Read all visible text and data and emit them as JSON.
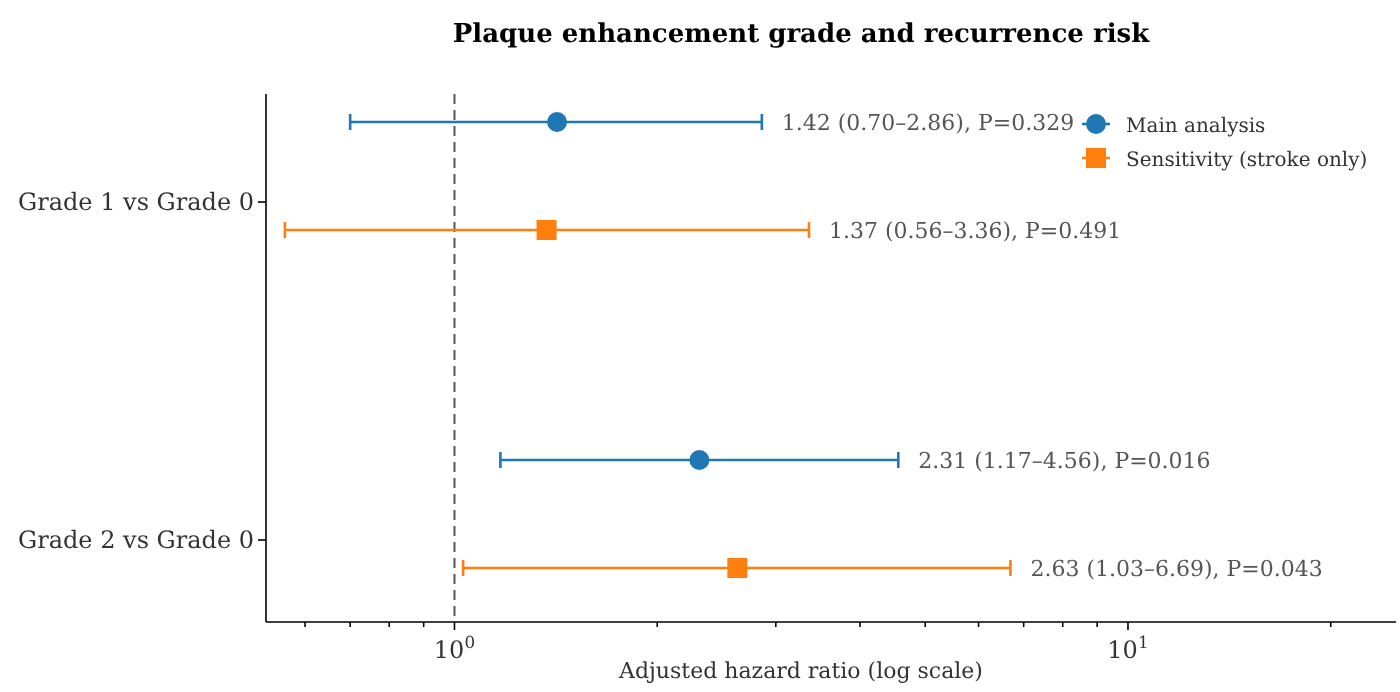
{
  "chart_data": {
    "type": "scatter",
    "orientation": "horizontal",
    "title": "Plaque enhancement grade and recurrence risk",
    "xlabel": "Adjusted hazard ratio (log scale)",
    "categories": [
      "Grade 1 vs Grade 0",
      "Grade 2 vs Grade 0"
    ],
    "log": "x",
    "xlim": [
      0.525,
      25
    ],
    "xticks": [
      {
        "value": 0.6,
        "label": null
      },
      {
        "value": 0.7,
        "label": null
      },
      {
        "value": 0.8,
        "label": null
      },
      {
        "value": 0.9,
        "label": null
      },
      {
        "value": 1,
        "label": "10$^{0}$"
      },
      {
        "value": 2,
        "label": null
      },
      {
        "value": 3,
        "label": null
      },
      {
        "value": 4,
        "label": null
      },
      {
        "value": 5,
        "label": null
      },
      {
        "value": 6,
        "label": null
      },
      {
        "value": 7,
        "label": null
      },
      {
        "value": 8,
        "label": null
      },
      {
        "value": 9,
        "label": null
      },
      {
        "value": 10,
        "label": "10$^{1}$"
      },
      {
        "value": 20,
        "label": null
      }
    ],
    "grid": false,
    "legend": "top right",
    "annotations": [
      "1.42 (0.70–2.86), P=0.329",
      "2.31 (1.17–4.56), P=0.016",
      "1.37 (0.56–3.36), P=0.491",
      "2.63 (1.03–6.69), P=0.043"
    ],
    "ref_lines": [
      {
        "axis": "x",
        "value": 1,
        "line_style": "dashed",
        "color": "#555555"
      }
    ],
    "series": [
      {
        "name": "Main analysis",
        "color": "#1f77b4",
        "marker": "circle",
        "values": [
          1.42,
          2.31
        ],
        "errors": [
          [
            0.7,
            2.86
          ],
          [
            1.17,
            4.56
          ]
        ]
      },
      {
        "name": "Sensitivity (stroke only)",
        "color": "#ff7f0e",
        "marker": "square",
        "values": [
          1.37,
          2.63
        ],
        "errors": [
          [
            0.56,
            3.36
          ],
          [
            1.03,
            6.69
          ]
        ]
      }
    ]
  }
}
